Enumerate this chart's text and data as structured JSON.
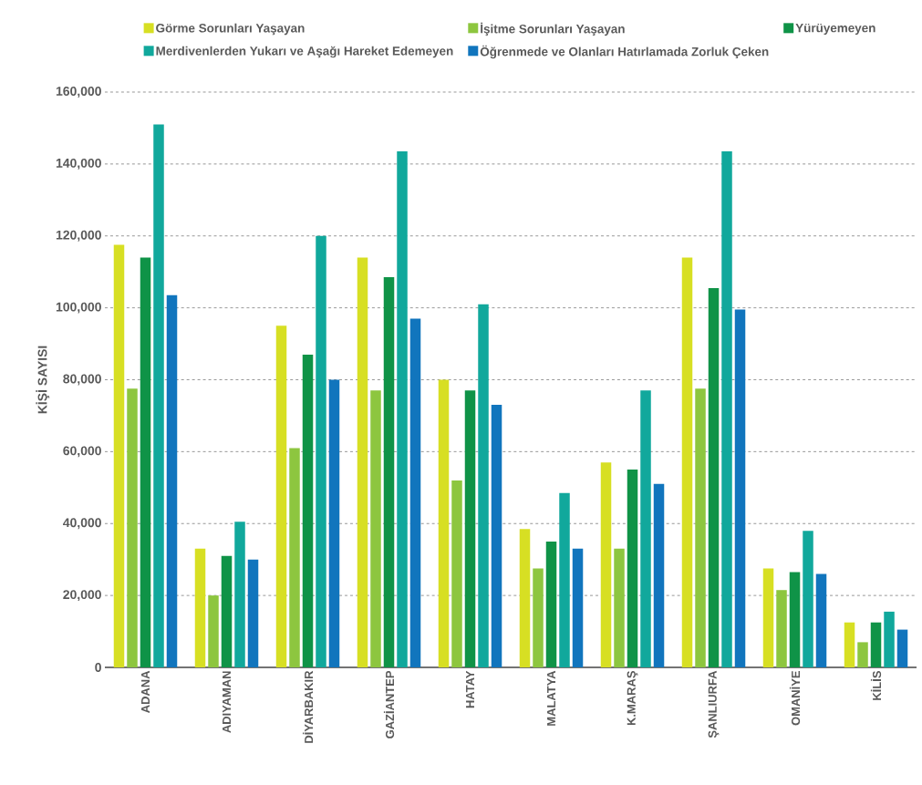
{
  "chart_data": {
    "type": "bar",
    "ylabel": "KİŞİ SAYISI",
    "categories": [
      "ADANA",
      "ADIYAMAN",
      "DİYARBAKIR",
      "GAZİANTEP",
      "HATAY",
      "MALATYA",
      "K.MARAŞ",
      "ŞANLIURFA",
      "OMANİYE",
      "KİLİS"
    ],
    "series": [
      {
        "name": "Görme Sorunları Yaşayan",
        "color": "#d7df23",
        "values": [
          117500,
          33000,
          95000,
          114000,
          80000,
          38500,
          57000,
          114000,
          27500,
          12500
        ]
      },
      {
        "name": "İşitme Sorunları Yaşayan",
        "color": "#8dc63f",
        "values": [
          77500,
          20000,
          61000,
          77000,
          52000,
          27500,
          33000,
          77500,
          21500,
          7000
        ]
      },
      {
        "name": "Yürüyemeyen",
        "color": "#0f9347",
        "values": [
          114000,
          31000,
          87000,
          108500,
          77000,
          35000,
          55000,
          105500,
          26500,
          12500
        ]
      },
      {
        "name": "Merdivenlerden Yukarı ve Aşağı Hareket Edemeyen",
        "color": "#11a89c",
        "values": [
          151000,
          40500,
          120000,
          143500,
          101000,
          48500,
          77000,
          143500,
          38000,
          15500
        ]
      },
      {
        "name": "Öğrenmede ve Olanları Hatırlamada Zorluk Çeken",
        "color": "#1175bd",
        "values": [
          103500,
          30000,
          80000,
          97000,
          73000,
          33000,
          51000,
          99500,
          26000,
          10500
        ]
      }
    ],
    "ylim": [
      0,
      160000
    ],
    "yticks": [
      0,
      {
        "value": 20000,
        "label": "20,000"
      },
      {
        "value": 40000,
        "label": "40,000"
      },
      {
        "value": 60000,
        "label": "60,000"
      },
      {
        "value": 80000,
        "label": "80,000"
      },
      {
        "value": 100000,
        "label": "100,000"
      },
      {
        "value": 120000,
        "label": "120,000"
      },
      {
        "value": 140000,
        "label": "140,000"
      },
      {
        "value": 160000,
        "label": "160,000"
      }
    ],
    "grid": "y",
    "legend": "top"
  }
}
